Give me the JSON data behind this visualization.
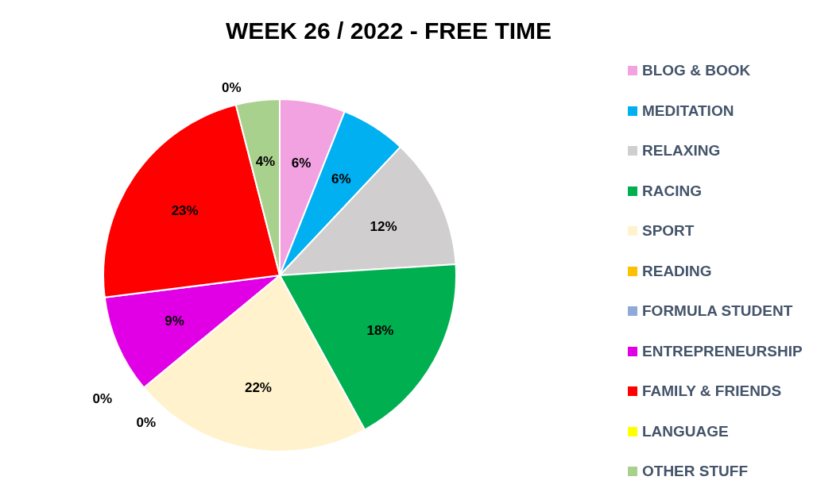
{
  "chart_data": {
    "type": "pie",
    "title": "WEEK 26 / 2022 - FREE TIME",
    "categories": [
      "BLOG & BOOK",
      "MEDITATION",
      "RELAXING",
      "RACING",
      "SPORT",
      "READING",
      "FORMULA STUDENT",
      "ENTREPRENEURSHIP",
      "FAMILY & FRIENDS",
      "LANGUAGE",
      "OTHER STUFF"
    ],
    "values": [
      6,
      6,
      12,
      18,
      22,
      0,
      0,
      9,
      23,
      0,
      4
    ],
    "value_labels": [
      "6%",
      "6%",
      "12%",
      "18%",
      "22%",
      "0%",
      "0%",
      "9%",
      "23%",
      "0%",
      "4%"
    ],
    "colors": [
      "#f2a2e0",
      "#00b0f0",
      "#d0cece",
      "#00b050",
      "#fff2cc",
      "#ffc000",
      "#8eaadb",
      "#e100e6",
      "#ff0000",
      "#ffff00",
      "#a9d18e"
    ],
    "legend": "right"
  }
}
